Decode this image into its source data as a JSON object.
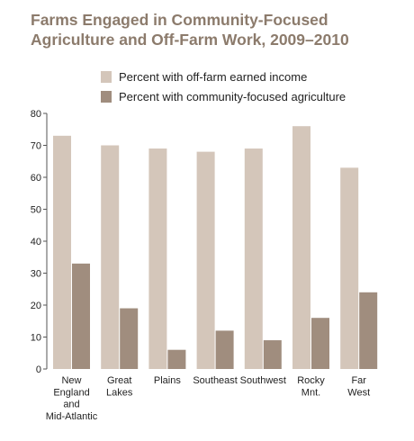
{
  "title_line1": "Farms Engaged in Community-Focused",
  "title_line2": "Agriculture and Off-Farm Work, 2009–2010",
  "colors": {
    "offfarm": "#d4c6ba",
    "community": "#a08d7e",
    "title": "#8c7b6c"
  },
  "chart_data": {
    "type": "bar",
    "categories": [
      [
        "New",
        "England",
        "and",
        "Mid-Atlantic"
      ],
      [
        "Great",
        "Lakes"
      ],
      [
        "Plains"
      ],
      [
        "Southeast"
      ],
      [
        "Southwest"
      ],
      [
        "Rocky",
        "Mnt."
      ],
      [
        "Far",
        "West"
      ]
    ],
    "series": [
      {
        "name": "Percent with off-farm earned income",
        "values": [
          73,
          70,
          69,
          68,
          69,
          76,
          63
        ]
      },
      {
        "name": "Percent with community-focused agriculture",
        "values": [
          33,
          19,
          6,
          12,
          9,
          16,
          24
        ]
      }
    ],
    "ylim": [
      0,
      80
    ],
    "yticks": [
      0,
      10,
      20,
      30,
      40,
      50,
      60,
      70,
      80
    ],
    "legend_position": "top",
    "grid": false
  }
}
